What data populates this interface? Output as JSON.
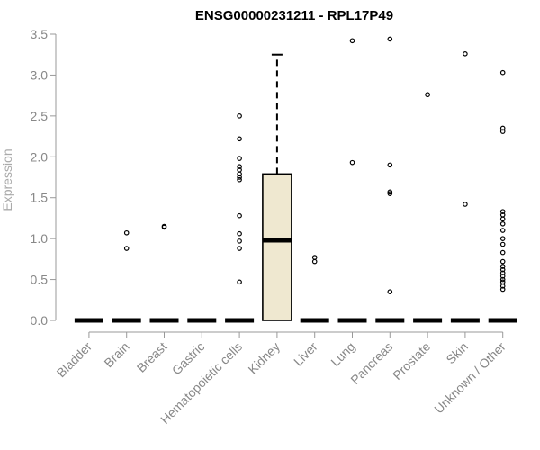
{
  "chart_data": {
    "type": "boxplot",
    "title": "ENSG00000231211 - RPL17P49",
    "ylabel": "Expression",
    "xlabel": "",
    "ylim": [
      0,
      3.5
    ],
    "yticks": [
      0.0,
      0.5,
      1.0,
      1.5,
      2.0,
      2.5,
      3.0,
      3.5
    ],
    "ytick_labels": [
      "0.0",
      "0.5",
      "1.0",
      "1.5",
      "2.0",
      "2.5",
      "3.0",
      "3.5"
    ],
    "grid": false,
    "categories": [
      "Bladder",
      "Brain",
      "Breast",
      "Gastric",
      "Hematopoietic cells",
      "Kidney",
      "Liver",
      "Lung",
      "Pancreas",
      "Prostate",
      "Skin",
      "Unknown / Other"
    ],
    "box_fill": "#efe8d0",
    "boxes": [
      {
        "category": "Bladder",
        "median": 0,
        "q1": 0,
        "q3": 0,
        "whisker_low": 0,
        "whisker_high": 0,
        "outliers": []
      },
      {
        "category": "Brain",
        "median": 0,
        "q1": 0,
        "q3": 0,
        "whisker_low": 0,
        "whisker_high": 0,
        "outliers": [
          1.07,
          0.88
        ]
      },
      {
        "category": "Breast",
        "median": 0,
        "q1": 0,
        "q3": 0,
        "whisker_low": 0,
        "whisker_high": 0,
        "outliers": [
          1.15,
          1.14
        ]
      },
      {
        "category": "Gastric",
        "median": 0,
        "q1": 0,
        "q3": 0,
        "whisker_low": 0,
        "whisker_high": 0,
        "outliers": []
      },
      {
        "category": "Hematopoietic cells",
        "median": 0,
        "q1": 0,
        "q3": 0,
        "whisker_low": 0,
        "whisker_high": 0,
        "outliers": [
          2.5,
          2.22,
          1.98,
          1.88,
          1.84,
          1.79,
          1.75,
          1.72,
          1.28,
          1.06,
          0.97,
          0.88,
          0.47
        ]
      },
      {
        "category": "Kidney",
        "median": 0.98,
        "q1": 0,
        "q3": 1.79,
        "whisker_low": 0,
        "whisker_high": 3.25,
        "outliers": []
      },
      {
        "category": "Liver",
        "median": 0,
        "q1": 0,
        "q3": 0,
        "whisker_low": 0,
        "whisker_high": 0,
        "outliers": [
          0.77,
          0.72
        ]
      },
      {
        "category": "Lung",
        "median": 0,
        "q1": 0,
        "q3": 0,
        "whisker_low": 0,
        "whisker_high": 0,
        "outliers": [
          3.42,
          1.93
        ]
      },
      {
        "category": "Pancreas",
        "median": 0,
        "q1": 0,
        "q3": 0,
        "whisker_low": 0,
        "whisker_high": 0,
        "outliers": [
          3.44,
          1.9,
          1.57,
          1.55,
          0.35
        ]
      },
      {
        "category": "Prostate",
        "median": 0,
        "q1": 0,
        "q3": 0,
        "whisker_low": 0,
        "whisker_high": 0,
        "outliers": [
          2.76
        ]
      },
      {
        "category": "Skin",
        "median": 0,
        "q1": 0,
        "q3": 0,
        "whisker_low": 0,
        "whisker_high": 0,
        "outliers": [
          3.26,
          1.42
        ]
      },
      {
        "category": "Unknown / Other",
        "median": 0,
        "q1": 0,
        "q3": 0,
        "whisker_low": 0,
        "whisker_high": 0,
        "outliers": [
          3.03,
          2.35,
          2.31,
          1.33,
          1.29,
          1.24,
          1.18,
          1.1,
          1.0,
          0.93,
          0.83,
          0.72,
          0.66,
          0.62,
          0.58,
          0.54,
          0.5,
          0.47,
          0.42,
          0.38
        ]
      }
    ]
  }
}
